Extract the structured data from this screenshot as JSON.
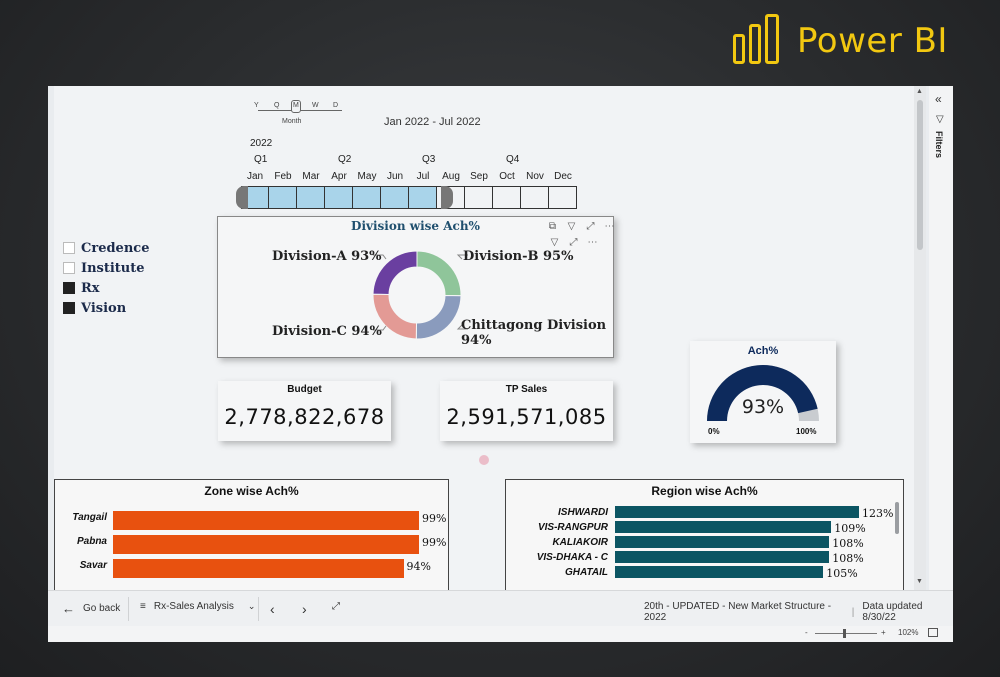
{
  "brand": {
    "name": "Power BI",
    "color": "#f2c811"
  },
  "slicer": {
    "modes": [
      "Y",
      "Q",
      "M",
      "W",
      "D"
    ],
    "mode_label": "Month",
    "selected_mode": "M",
    "date_range": "Jan 2022 - Jul 2022",
    "year": "2022",
    "quarters": [
      "Q1",
      "Q2",
      "Q3",
      "Q4"
    ],
    "months": [
      "Jan",
      "Feb",
      "Mar",
      "Apr",
      "May",
      "Jun",
      "Jul",
      "Aug",
      "Sep",
      "Oct",
      "Nov",
      "Dec"
    ],
    "selected_month_count": 7
  },
  "legend": {
    "items": [
      {
        "label": "Credence",
        "checked": false
      },
      {
        "label": "Institute",
        "checked": false
      },
      {
        "label": "Rx",
        "checked": true
      },
      {
        "label": "Vision",
        "checked": true
      }
    ]
  },
  "division_chart": {
    "title": "Division wise Ach%",
    "toolbar_icons": [
      "copy-icon",
      "filter-icon",
      "focus-icon",
      "more-icon"
    ],
    "toolbar2_icons": [
      "filter-icon",
      "focus-icon",
      "more-icon"
    ],
    "label_a": "Division-A 93%",
    "label_b": "Division-B 95%",
    "label_c": "Division-C 94%",
    "label_ctg_1": "Chittagong Division",
    "label_ctg_2": "94%"
  },
  "kpi": {
    "budget_title": "Budget",
    "budget_value": "2,778,822,678",
    "tp_title": "TP Sales",
    "tp_value": "2,591,571,085"
  },
  "gauge": {
    "title": "Ach%",
    "value_text": "93%",
    "value": 93,
    "min": "0%",
    "max": "100%",
    "color": "#0d2a5c"
  },
  "zone_chart": {
    "title": "Zone wise Ach%",
    "color": "#e8510f",
    "rows": [
      {
        "category": "Tangail",
        "label": "99%"
      },
      {
        "category": "Pabna",
        "label": "99%"
      },
      {
        "category": "Savar",
        "label": "94%"
      }
    ]
  },
  "region_chart": {
    "title": "Region wise Ach%",
    "color": "#0b5563",
    "rows": [
      {
        "category": "ISHWARDI",
        "label": "123%"
      },
      {
        "category": "VIS-RANGPUR",
        "label": "109%"
      },
      {
        "category": "KALIAKOIR",
        "label": "108%"
      },
      {
        "category": "VIS-DHAKA - C",
        "label": "108%"
      },
      {
        "category": "GHATAIL",
        "label": "105%"
      }
    ]
  },
  "chart_data": [
    {
      "type": "pie",
      "title": "Division wise Ach%",
      "categories": [
        "Division-A",
        "Division-B",
        "Chittagong Division",
        "Division-C"
      ],
      "values": [
        93,
        95,
        94,
        94
      ],
      "colors": [
        "#6a3fa0",
        "#8fc59a",
        "#8a9bbd",
        "#e39a95"
      ]
    },
    {
      "type": "bar",
      "title": "Zone wise Ach%",
      "categories": [
        "Tangail",
        "Pabna",
        "Savar"
      ],
      "values": [
        99,
        99,
        94
      ]
    },
    {
      "type": "bar",
      "title": "Region wise Ach%",
      "categories": [
        "ISHWARDI",
        "VIS-RANGPUR",
        "KALIAKOIR",
        "VIS-DHAKA - C",
        "GHATAIL"
      ],
      "values": [
        123,
        109,
        108,
        108,
        105
      ]
    }
  ],
  "filters_pane": {
    "label": "Filters",
    "collapse_icon": "double-chevron-left-icon"
  },
  "nav": {
    "back_label": "Go back",
    "page_label": "Rx-Sales Analysis",
    "report_info": "20th - UPDATED - New Market Structure - 2022",
    "data_updated": "Data updated 8/30/22",
    "zoom_minus": "-",
    "zoom_plus": "+",
    "zoom_level": "102%"
  }
}
